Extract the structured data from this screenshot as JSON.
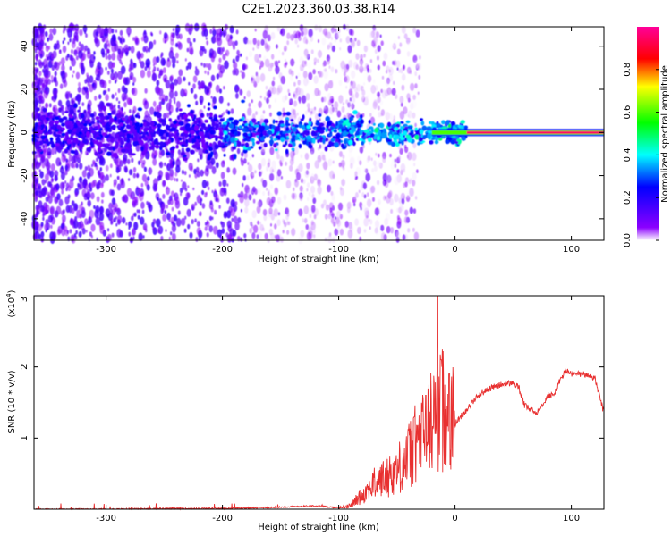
{
  "figure": {
    "title": "C2E1.2023.360.03.38.R14"
  },
  "chart_data": [
    {
      "type": "heatmap",
      "xlabel": "Height of straight line (km)",
      "ylabel": "Frequency (Hz)",
      "xlim": [
        -362,
        128
      ],
      "ylim": [
        -50,
        49
      ],
      "xticks": [
        -300,
        -200,
        -100,
        0,
        100
      ],
      "yticks": [
        -40,
        -20,
        0,
        20,
        40
      ],
      "colorbar": {
        "label": "Normalized spectral amplitude",
        "range": [
          0,
          1
        ],
        "ticks": [
          0.0,
          0.2,
          0.4,
          0.6,
          0.8
        ],
        "colormap": [
          "#ffffff",
          "#7f00ff",
          "#0000ff",
          "#00ffff",
          "#00ff00",
          "#ffff00",
          "#ff0000",
          "#ff00aa"
        ]
      },
      "features": {
        "noise_band_x": [
          -362,
          -180
        ],
        "scatter_end_x": -30,
        "signal_center_hz": 0,
        "strong_line_start_x": 10,
        "strong_line_amplitude": 0.95
      },
      "grid": false
    },
    {
      "type": "line",
      "xlabel": "Height of straight line (km)",
      "ylabel": "SNR (10 * v/v)",
      "multiplier_label": "(x10",
      "multiplier_exp": "4",
      "multiplier_close": ")",
      "xlim": [
        -362,
        128
      ],
      "ylim": [
        0,
        3
      ],
      "xticks": [
        -300,
        -200,
        -100,
        0,
        100
      ],
      "yticks": [
        1,
        2,
        3
      ],
      "color": "#e83030",
      "grid": false,
      "series": [
        {
          "x": [
            -362,
            -300,
            -250,
            -200,
            -170,
            -150,
            -120,
            -100,
            -90,
            -80,
            -70,
            -60,
            -50,
            -40,
            -30,
            -25,
            -20,
            -15,
            -10,
            -5,
            0,
            10,
            20,
            30,
            40,
            50,
            55,
            60,
            70,
            80,
            85,
            90,
            95,
            100,
            110,
            120,
            128
          ],
          "values": [
            0.0,
            0.0,
            0.01,
            0.01,
            0.02,
            0.03,
            0.05,
            0.02,
            0.05,
            0.2,
            0.35,
            0.45,
            0.55,
            0.75,
            1.0,
            1.05,
            1.25,
            1.45,
            1.4,
            1.3,
            1.2,
            1.4,
            1.6,
            1.7,
            1.75,
            1.78,
            1.7,
            1.45,
            1.35,
            1.6,
            1.6,
            1.8,
            1.95,
            1.9,
            1.9,
            1.85,
            1.35
          ]
        }
      ],
      "spikes": [
        {
          "x": -15,
          "value": 3.0
        },
        {
          "x": -12,
          "value": 2.1
        },
        {
          "x": -5,
          "value": 1.9
        },
        {
          "x": -25,
          "value": 1.6
        },
        {
          "x": -35,
          "value": 1.3
        }
      ]
    }
  ]
}
